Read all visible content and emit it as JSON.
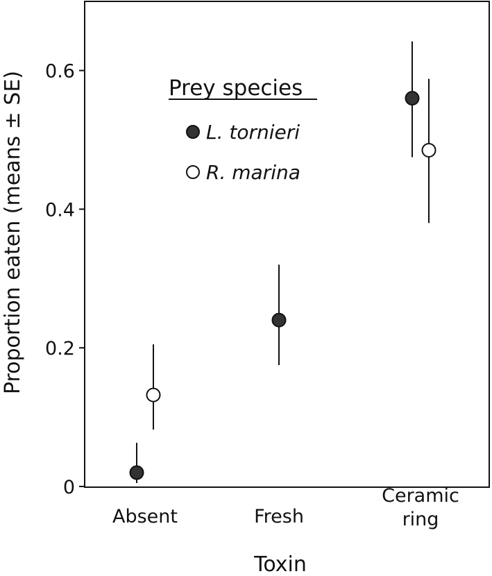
{
  "chart_data": {
    "type": "scatter",
    "xlabel": "Toxin",
    "ylabel": "Proportion eaten (means ± SE)",
    "categories": [
      "Absent",
      "Fresh",
      "Ceramic\nring"
    ],
    "yticks": [
      0,
      0.2,
      0.4,
      0.6
    ],
    "ytick_labels": [
      "0",
      "0.2",
      "0.4",
      "0.6"
    ],
    "ylim": [
      0,
      0.7
    ],
    "legend": {
      "title": "Prey species",
      "placement": "top-left"
    },
    "series": [
      {
        "name": "L. tornieri",
        "marker": "filled-circle",
        "color": "#333333",
        "points": [
          {
            "category": "Absent",
            "mean": 0.02,
            "lower": 0.005,
            "upper": 0.063
          },
          {
            "category": "Fresh",
            "mean": 0.24,
            "lower": 0.175,
            "upper": 0.32
          },
          {
            "category": "Ceramic\nring",
            "mean": 0.56,
            "lower": 0.475,
            "upper": 0.642
          }
        ]
      },
      {
        "name": "R. marina",
        "marker": "open-circle",
        "color": "#ffffff",
        "points": [
          {
            "category": "Absent",
            "mean": 0.132,
            "lower": 0.082,
            "upper": 0.205
          },
          {
            "category": "Ceramic\nring",
            "mean": 0.485,
            "lower": 0.38,
            "upper": 0.588
          }
        ]
      }
    ]
  }
}
